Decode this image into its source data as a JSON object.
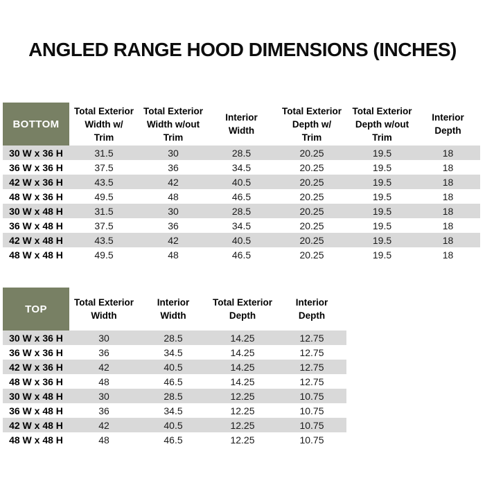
{
  "page": {
    "title": "ANGLED RANGE HOOD DIMENSIONS (INCHES)"
  },
  "colors": {
    "header_green": "#788064",
    "row_shaded_gray": "#D9D9D9",
    "page_background": "#FFFFFF",
    "corner_label_text": "#FFFFFF",
    "body_text": "#1A1A1A"
  },
  "bottom_table": {
    "corner_label": "BOTTOM",
    "columns": [
      {
        "label": "Total Exterior Width w/ Trim",
        "lines": [
          "Total Exterior",
          "Width w/",
          "Trim"
        ]
      },
      {
        "label": "Total Exterior Width w/out Trim",
        "lines": [
          "Total Exterior",
          "Width w/out",
          "Trim"
        ]
      },
      {
        "label": "Interior Width",
        "lines": [
          "Interior",
          "Width"
        ]
      },
      {
        "label": "Total Exterior Depth w/ Trim",
        "lines": [
          "Total Exterior",
          "Depth w/",
          "Trim"
        ]
      },
      {
        "label": "Total Exterior Depth w/out Trim",
        "lines": [
          "Total Exterior",
          "Depth w/out",
          "Trim"
        ]
      },
      {
        "label": "Interior Depth",
        "lines": [
          "Interior",
          "Depth"
        ]
      }
    ],
    "rows": [
      {
        "label": "30 W x 36 H",
        "values": [
          "31.5",
          "30",
          "28.5",
          "20.25",
          "19.5",
          "18"
        ]
      },
      {
        "label": "36 W x 36 H",
        "values": [
          "37.5",
          "36",
          "34.5",
          "20.25",
          "19.5",
          "18"
        ]
      },
      {
        "label": "42 W x 36 H",
        "values": [
          "43.5",
          "42",
          "40.5",
          "20.25",
          "19.5",
          "18"
        ]
      },
      {
        "label": "48 W x 36 H",
        "values": [
          "49.5",
          "48",
          "46.5",
          "20.25",
          "19.5",
          "18"
        ]
      },
      {
        "label": "30 W x 48 H",
        "values": [
          "31.5",
          "30",
          "28.5",
          "20.25",
          "19.5",
          "18"
        ]
      },
      {
        "label": "36 W x 48 H",
        "values": [
          "37.5",
          "36",
          "34.5",
          "20.25",
          "19.5",
          "18"
        ]
      },
      {
        "label": "42 W x 48 H",
        "values": [
          "43.5",
          "42",
          "40.5",
          "20.25",
          "19.5",
          "18"
        ]
      },
      {
        "label": "48 W x 48 H",
        "values": [
          "49.5",
          "48",
          "46.5",
          "20.25",
          "19.5",
          "18"
        ]
      }
    ]
  },
  "top_table": {
    "corner_label": "TOP",
    "columns": [
      {
        "label": "Total Exterior Width",
        "lines": [
          "Total Exterior",
          "Width"
        ]
      },
      {
        "label": "Interior Width",
        "lines": [
          "Interior",
          "Width"
        ]
      },
      {
        "label": "Total Exterior Depth",
        "lines": [
          "Total Exterior",
          "Depth"
        ]
      },
      {
        "label": "Interior Depth",
        "lines": [
          "Interior",
          "Depth"
        ]
      }
    ],
    "rows": [
      {
        "label": "30 W x 36 H",
        "values": [
          "30",
          "28.5",
          "14.25",
          "12.75"
        ]
      },
      {
        "label": "36 W x 36 H",
        "values": [
          "36",
          "34.5",
          "14.25",
          "12.75"
        ]
      },
      {
        "label": "42 W x 36 H",
        "values": [
          "42",
          "40.5",
          "14.25",
          "12.75"
        ]
      },
      {
        "label": "48 W x 36 H",
        "values": [
          "48",
          "46.5",
          "14.25",
          "12.75"
        ]
      },
      {
        "label": "30 W x 48 H",
        "values": [
          "30",
          "28.5",
          "12.25",
          "10.75"
        ]
      },
      {
        "label": "36 W x 48 H",
        "values": [
          "36",
          "34.5",
          "12.25",
          "10.75"
        ]
      },
      {
        "label": "42 W x 48 H",
        "values": [
          "42",
          "40.5",
          "12.25",
          "10.75"
        ]
      },
      {
        "label": "48 W x 48 H",
        "values": [
          "48",
          "46.5",
          "12.25",
          "10.75"
        ]
      }
    ]
  }
}
